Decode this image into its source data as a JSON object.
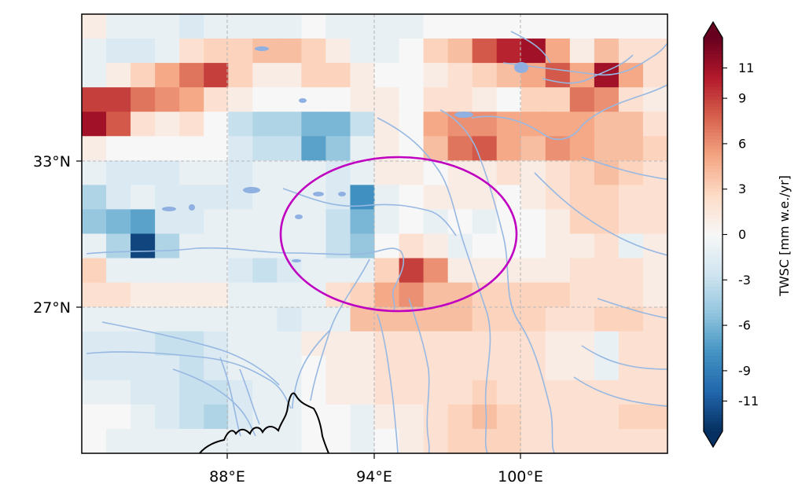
{
  "map": {
    "lon_labels": [
      "88°E",
      "94°E",
      "100°E"
    ],
    "lat_labels": [
      "33°N",
      "27°N"
    ],
    "gridline_color": "#b8b8b8",
    "ellipse_color": "#c000c0",
    "river_color": "#97b8e2",
    "lake_color": "#8fb0e0",
    "coast_color": "#000000",
    "grid_rows": [
      [
        1,
        -1,
        -1,
        -1,
        -2,
        -1,
        -1,
        -1,
        -1,
        0,
        -1,
        -1,
        -1,
        -1,
        0,
        0,
        0,
        0,
        0,
        0,
        0,
        0,
        0,
        0
      ],
      [
        -1,
        -2,
        -2,
        -1,
        2,
        3,
        3,
        4,
        4,
        3,
        1,
        -1,
        -1,
        0,
        3,
        4,
        8,
        10,
        11,
        5,
        1,
        4,
        2,
        2
      ],
      [
        -1,
        1,
        3,
        5,
        7,
        9,
        3,
        1,
        1,
        3,
        3,
        1,
        0,
        0,
        1,
        2,
        3,
        4,
        5,
        8,
        5,
        11,
        5,
        2
      ],
      [
        9,
        9,
        7,
        6,
        5,
        2,
        1,
        0,
        0,
        0,
        0,
        1,
        1,
        0,
        2,
        2,
        1,
        0,
        3,
        3,
        7,
        6,
        2,
        1
      ],
      [
        11,
        8,
        2,
        1,
        2,
        0,
        -3,
        -4,
        -4,
        -6,
        -6,
        -3,
        1,
        0,
        5,
        6,
        6,
        5,
        5,
        5,
        5,
        4,
        4,
        2
      ],
      [
        1,
        0,
        0,
        0,
        0,
        0,
        -2,
        -3,
        -3,
        -7,
        -5,
        -1,
        1,
        0,
        4,
        7,
        8,
        5,
        4,
        6,
        5,
        4,
        4,
        3
      ],
      [
        -1,
        -2,
        -2,
        -2,
        -1,
        -1,
        -2,
        -1,
        -1,
        -1,
        -2,
        -1,
        1,
        1,
        0,
        1,
        1,
        2,
        1,
        2,
        3,
        4,
        3,
        2
      ],
      [
        -4,
        -2,
        -1,
        -2,
        -2,
        -2,
        -2,
        -1,
        -1,
        -1,
        -2,
        -8,
        -1,
        0,
        1,
        1,
        1,
        0,
        1,
        2,
        3,
        3,
        2,
        2
      ],
      [
        -5,
        -6,
        -7,
        -2,
        -2,
        -1,
        -1,
        -1,
        -1,
        -1,
        -3,
        -6,
        -1,
        0,
        -1,
        0,
        -1,
        0,
        0,
        1,
        3,
        3,
        2,
        2
      ],
      [
        -1,
        -4,
        -12,
        -4,
        -1,
        -1,
        -1,
        -1,
        -1,
        -1,
        -3,
        -5,
        0,
        2,
        1,
        -1,
        0,
        0,
        0,
        1,
        1,
        2,
        -1,
        1
      ],
      [
        3,
        -1,
        -1,
        -1,
        -1,
        -1,
        -2,
        -3,
        -2,
        -1,
        -1,
        -1,
        3,
        9,
        6,
        1,
        1,
        1,
        1,
        1,
        2,
        2,
        2,
        1
      ],
      [
        2,
        2,
        1,
        1,
        1,
        1,
        -1,
        -1,
        -1,
        -1,
        2,
        3,
        5,
        6,
        4,
        4,
        3,
        3,
        3,
        3,
        2,
        2,
        2,
        1
      ],
      [
        -1,
        -1,
        -1,
        -1,
        -1,
        -1,
        -1,
        -1,
        -2,
        -1,
        -1,
        4,
        4,
        4,
        4,
        4,
        3,
        3,
        3,
        2,
        2,
        3,
        3,
        2
      ],
      [
        -2,
        -2,
        -2,
        -3,
        -3,
        -2,
        -1,
        -1,
        -1,
        1,
        1,
        1,
        2,
        2,
        2,
        2,
        2,
        2,
        2,
        1,
        1,
        -1,
        2,
        2
      ],
      [
        -2,
        -2,
        -2,
        -2,
        -3,
        -2,
        -1,
        -1,
        -1,
        0,
        1,
        1,
        2,
        2,
        2,
        2,
        2,
        2,
        2,
        1,
        1,
        -1,
        2,
        2
      ],
      [
        -1,
        -1,
        -2,
        -2,
        -3,
        -3,
        -2,
        -1,
        -1,
        0,
        1,
        1,
        2,
        2,
        2,
        2,
        3,
        2,
        2,
        2,
        2,
        2,
        2,
        2
      ],
      [
        0,
        0,
        -1,
        -2,
        -3,
        -4,
        -2,
        -1,
        -1,
        0,
        0,
        -1,
        1,
        1,
        2,
        3,
        4,
        3,
        2,
        2,
        2,
        2,
        3,
        3
      ],
      [
        0,
        -1,
        -1,
        -1,
        -1,
        -1,
        -1,
        -1,
        -1,
        0,
        0,
        -1,
        0,
        1,
        2,
        3,
        3,
        3,
        2,
        2,
        2,
        2,
        2,
        2
      ]
    ]
  },
  "colorbar": {
    "label": "TWSC [mm w.e./yr]",
    "tick_labels": [
      "11",
      "9",
      "6",
      "3",
      "0",
      "-3",
      "-6",
      "-9",
      "-11"
    ],
    "tick_values": [
      11,
      9,
      6,
      3,
      0,
      -3,
      -6,
      -9,
      -11
    ],
    "vmin": -13,
    "vmax": 13
  }
}
